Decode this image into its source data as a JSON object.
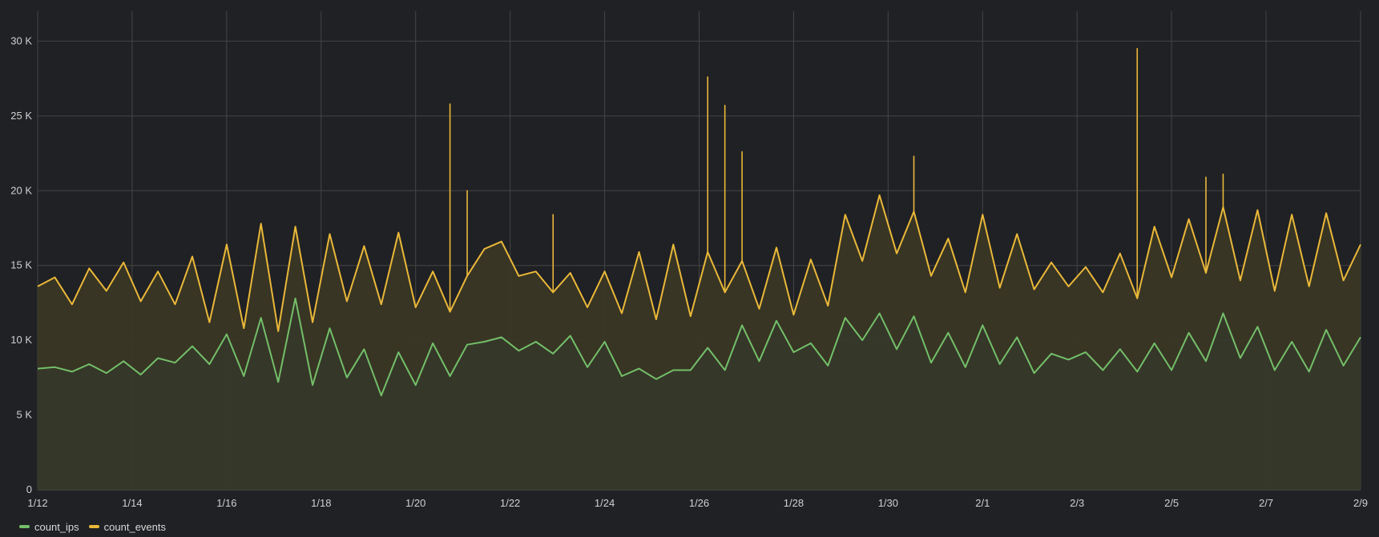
{
  "chart_data": {
    "type": "area",
    "title": "",
    "xlabel": "",
    "ylabel": "",
    "x_ticks": [
      "1/12",
      "1/14",
      "1/16",
      "1/18",
      "1/20",
      "1/22",
      "1/24",
      "1/26",
      "1/28",
      "1/30",
      "2/1",
      "2/3",
      "2/5",
      "2/7",
      "2/9"
    ],
    "y_ticks": [
      {
        "value": 0,
        "label": "0"
      },
      {
        "value": 5000,
        "label": "5 K"
      },
      {
        "value": 10000,
        "label": "10 K"
      },
      {
        "value": 15000,
        "label": "15 K"
      },
      {
        "value": 20000,
        "label": "20 K"
      },
      {
        "value": 25000,
        "label": "25 K"
      },
      {
        "value": 30000,
        "label": "30 K"
      }
    ],
    "ylim": [
      0,
      32000
    ],
    "grid": true,
    "legend_position": "bottom-left",
    "series": [
      {
        "name": "count_ips",
        "color": "#73bf69",
        "values": [
          8100,
          8200,
          7900,
          8400,
          7800,
          8600,
          7700,
          8800,
          8500,
          9600,
          8400,
          10400,
          7600,
          11500,
          7200,
          12800,
          7000,
          10800,
          7500,
          9400,
          6300,
          9200,
          7000,
          9800,
          7600,
          9700,
          9900,
          10200,
          9300,
          9900,
          9100,
          10300,
          8200,
          9900,
          7600,
          8100,
          7400,
          8000,
          8000,
          9500,
          8000,
          11000,
          8600,
          11300,
          9200,
          9800,
          8300,
          11500,
          10000,
          11800,
          9400,
          11600,
          8500,
          10500,
          8200,
          11000,
          8400,
          10200,
          7800,
          9100,
          8700,
          9200,
          8000,
          9400,
          7900,
          9800,
          8000,
          10500,
          8600,
          11800,
          8800,
          10900,
          8000,
          9900,
          7900,
          10700,
          8300,
          10200
        ]
      },
      {
        "name": "count_events",
        "color": "#eab839",
        "values": [
          13600,
          14200,
          12400,
          14800,
          13300,
          15200,
          12600,
          14600,
          12400,
          15600,
          11200,
          16400,
          10800,
          17800,
          10600,
          17600,
          11200,
          17100,
          12600,
          16300,
          12400,
          17200,
          12200,
          14600,
          11900,
          14300,
          16100,
          16600,
          14300,
          14600,
          13200,
          14500,
          12200,
          14600,
          11800,
          15900,
          11400,
          16400,
          11600,
          15900,
          13200,
          15300,
          12100,
          16200,
          11700,
          15400,
          12300,
          18400,
          15300,
          19700,
          15800,
          18600,
          14300,
          16800,
          13200,
          18400,
          13500,
          17100,
          13400,
          15200,
          13600,
          14900,
          13200,
          15800,
          12800,
          17600,
          14200,
          18100,
          14500,
          18900,
          14000,
          18700,
          13300,
          18400,
          13600,
          18500,
          14000,
          16400
        ]
      }
    ],
    "spikes": [
      {
        "series": "count_events",
        "x_index": 24,
        "value": 25800
      },
      {
        "series": "count_events",
        "x_index": 25,
        "value": 20000
      },
      {
        "series": "count_events",
        "x_index": 30,
        "value": 18400
      },
      {
        "series": "count_events",
        "x_index": 39,
        "value": 27600
      },
      {
        "series": "count_events",
        "x_index": 40,
        "value": 25700
      },
      {
        "series": "count_events",
        "x_index": 41,
        "value": 22600
      },
      {
        "series": "count_events",
        "x_index": 51,
        "value": 22300
      },
      {
        "series": "count_events",
        "x_index": 64,
        "value": 29500
      },
      {
        "series": "count_events",
        "x_index": 68,
        "value": 20900
      },
      {
        "series": "count_events",
        "x_index": 69,
        "value": 21100
      }
    ]
  }
}
